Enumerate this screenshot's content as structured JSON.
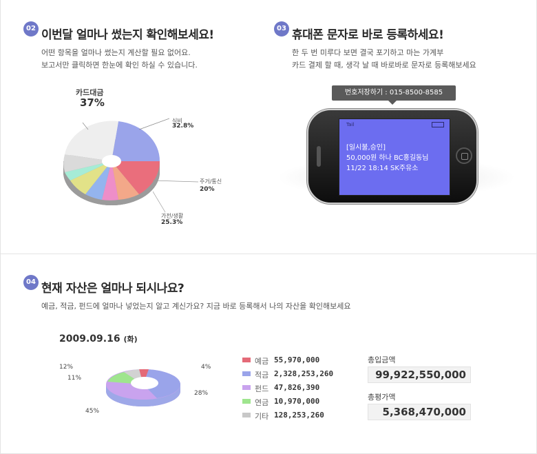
{
  "colors": {
    "badge": "#6f78c8",
    "sms_screen": "#6c6df0"
  },
  "sec02": {
    "badge": "02",
    "title": "이번달 얼마나 썼는지 확인해보세요!",
    "desc1": "어떤 항목을 얼마나 썼는지 계산할 필요 없어요.",
    "desc2": "보고서만 클릭하면 한눈에 확인 하실 수 있습니다.",
    "pie": {
      "big_label": "카드대금",
      "big_value": "37%",
      "labels": [
        {
          "name": "식비",
          "value": "32.8%"
        },
        {
          "name": "주거/통신",
          "value": "20%"
        },
        {
          "name": "가전/생활",
          "value": "25.3%"
        }
      ]
    }
  },
  "sec03": {
    "badge": "03",
    "title": "휴대폰 문자로 바로 등록하세요!",
    "desc1": "한 두 번 미루다 보면 결국 포기하고 마는 가계부",
    "desc2": "카드 결제 할 때, 생각 날 때 바로바로 문자로 등록해보세요",
    "tooltip": "번호저장하기 : 015-8500-8585",
    "signal": "Tail",
    "sms_lines": [
      "[일시불,승인]",
      "50,000원 하나 BC홍길동님",
      "11/22 18:14 SK주유소"
    ]
  },
  "sec04": {
    "badge": "04",
    "title": "현재 자산은 얼마나 되시나요?",
    "desc": "예금, 적금, 펀드에 얼마나 넣었는지 알고 계신가요? 지금 바로 등록해서 나의 자산을 확인해보세요",
    "date": "2009.09.16",
    "weekday": "(화)",
    "donut_labels": [
      "4%",
      "28%",
      "45%",
      "11%",
      "12%"
    ],
    "legend": [
      {
        "name": "예금",
        "value": "55,970,000",
        "color": "#e46a78"
      },
      {
        "name": "적금",
        "value": "2,328,253,260",
        "color": "#9aa4ea"
      },
      {
        "name": "펀드",
        "value": "47,826,390",
        "color": "#c9a3ee"
      },
      {
        "name": "연금",
        "value": "10,970,000",
        "color": "#9fe58e"
      },
      {
        "name": "기타",
        "value": "128,253,260",
        "color": "#c8c8c8"
      }
    ],
    "total_in_label": "총입금액",
    "total_in": "99,922,550,000",
    "total_eval_label": "총평가액",
    "total_eval": "5,368,470,000"
  }
}
